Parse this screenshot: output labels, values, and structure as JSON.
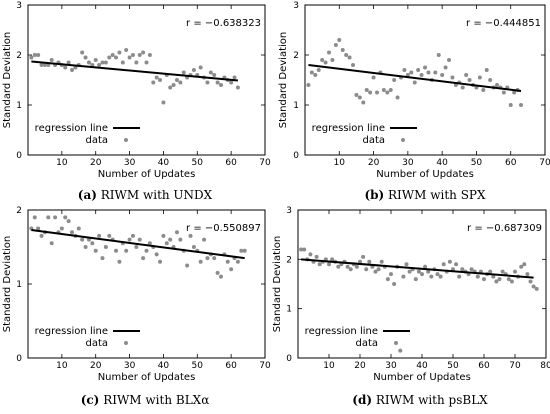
{
  "chart_data": [
    {
      "type": "scatter",
      "panel_id": "a",
      "caption_letter": "(a)",
      "caption_text": "RIWM with UNDX",
      "r_text": "r = −0.638323",
      "xlabel": "Number of Updates",
      "ylabel": "Standard Deviation",
      "xlim": [
        0,
        70
      ],
      "ylim": [
        0,
        3
      ],
      "xticks": [
        10,
        20,
        30,
        40,
        50,
        60,
        70
      ],
      "yticks": [
        0,
        1,
        2,
        3
      ],
      "legend": {
        "placement": "bottom-left",
        "line_label": "regression line",
        "data_label": "data"
      },
      "regression": {
        "x": [
          1,
          62
        ],
        "y": [
          1.87,
          1.49
        ]
      },
      "series": [
        {
          "name": "data",
          "x": [
            1,
            2,
            3,
            4,
            5,
            6,
            7,
            8,
            9,
            10,
            11,
            12,
            13,
            14,
            15,
            16,
            17,
            18,
            19,
            20,
            21,
            22,
            23,
            24,
            25,
            26,
            27,
            28,
            29,
            30,
            31,
            32,
            33,
            34,
            35,
            36,
            37,
            38,
            39,
            40,
            41,
            42,
            43,
            44,
            45,
            46,
            47,
            48,
            49,
            50,
            51,
            52,
            53,
            54,
            55,
            56,
            57,
            58,
            59,
            60,
            61,
            62
          ],
          "y": [
            1.95,
            2.0,
            2.0,
            1.8,
            1.8,
            1.8,
            1.9,
            1.8,
            1.85,
            1.8,
            1.75,
            1.85,
            1.7,
            1.75,
            1.8,
            2.05,
            1.95,
            1.85,
            1.8,
            1.9,
            1.8,
            1.85,
            1.85,
            1.95,
            2.0,
            1.95,
            2.05,
            1.85,
            2.1,
            1.95,
            2.0,
            1.85,
            2.0,
            2.05,
            1.85,
            2.0,
            1.45,
            1.55,
            1.5,
            1.05,
            1.6,
            1.35,
            1.4,
            1.5,
            1.45,
            1.65,
            1.55,
            1.6,
            1.7,
            1.6,
            1.75,
            1.55,
            1.45,
            1.65,
            1.6,
            1.45,
            1.4,
            1.55,
            1.5,
            1.45,
            1.55,
            1.35
          ]
        }
      ]
    },
    {
      "type": "scatter",
      "panel_id": "b",
      "caption_letter": "(b)",
      "caption_text": "RIWM with SPX",
      "r_text": "r = −0.444851",
      "xlabel": "Number of Updates",
      "ylabel": "Standard Deviation",
      "xlim": [
        0,
        70
      ],
      "ylim": [
        0,
        3
      ],
      "xticks": [
        10,
        20,
        30,
        40,
        50,
        60,
        70
      ],
      "yticks": [
        0,
        1,
        2,
        3
      ],
      "legend": {
        "placement": "bottom-left",
        "line_label": "regression line",
        "data_label": "data"
      },
      "regression": {
        "x": [
          1,
          63
        ],
        "y": [
          1.8,
          1.28
        ]
      },
      "series": [
        {
          "name": "data",
          "x": [
            1,
            2,
            3,
            4,
            5,
            6,
            7,
            8,
            9,
            10,
            11,
            12,
            13,
            14,
            15,
            16,
            17,
            18,
            19,
            20,
            21,
            22,
            23,
            24,
            25,
            26,
            27,
            28,
            29,
            30,
            31,
            32,
            33,
            34,
            35,
            36,
            37,
            38,
            39,
            40,
            41,
            42,
            43,
            44,
            45,
            46,
            47,
            48,
            49,
            50,
            51,
            52,
            53,
            54,
            55,
            56,
            57,
            58,
            59,
            60,
            61,
            62,
            63
          ],
          "y": [
            1.4,
            1.65,
            1.6,
            1.7,
            1.9,
            1.85,
            2.05,
            1.9,
            2.2,
            2.3,
            2.1,
            2.0,
            1.95,
            1.8,
            1.2,
            1.15,
            1.05,
            1.3,
            1.25,
            1.55,
            1.25,
            1.65,
            1.3,
            1.25,
            1.3,
            1.5,
            1.15,
            1.55,
            1.7,
            1.6,
            1.65,
            1.45,
            1.7,
            1.6,
            1.75,
            1.65,
            1.5,
            1.65,
            2.0,
            1.6,
            1.75,
            1.9,
            1.55,
            1.4,
            1.45,
            1.35,
            1.6,
            1.5,
            1.4,
            1.35,
            1.55,
            1.3,
            1.7,
            1.5,
            1.35,
            1.4,
            1.35,
            1.25,
            1.35,
            1.0,
            1.25,
            1.3,
            1.0
          ]
        }
      ]
    },
    {
      "type": "scatter",
      "panel_id": "c",
      "caption_letter": "(c)",
      "caption_text": "RIWM with BLXα",
      "r_text": "r = −0.550897",
      "xlabel": "Number of Updates",
      "ylabel": "Standard Deviation",
      "xlim": [
        0,
        70
      ],
      "ylim": [
        0,
        2
      ],
      "xticks": [
        10,
        20,
        30,
        40,
        50,
        60,
        70
      ],
      "yticks": [
        0,
        1,
        2
      ],
      "legend": {
        "placement": "bottom-left",
        "line_label": "regression line",
        "data_label": "data"
      },
      "regression": {
        "x": [
          1,
          64
        ],
        "y": [
          1.73,
          1.35
        ]
      },
      "series": [
        {
          "name": "data",
          "x": [
            1,
            2,
            3,
            4,
            5,
            6,
            7,
            8,
            9,
            10,
            11,
            12,
            13,
            14,
            15,
            16,
            17,
            18,
            19,
            20,
            21,
            22,
            23,
            24,
            25,
            26,
            27,
            28,
            29,
            30,
            31,
            32,
            33,
            34,
            35,
            36,
            37,
            38,
            39,
            40,
            41,
            42,
            43,
            44,
            45,
            46,
            47,
            48,
            49,
            50,
            51,
            52,
            53,
            54,
            55,
            56,
            57,
            58,
            59,
            60,
            61,
            62,
            63,
            64
          ],
          "y": [
            1.75,
            1.9,
            1.75,
            1.65,
            1.7,
            1.9,
            1.55,
            1.9,
            1.7,
            1.75,
            1.9,
            1.85,
            1.7,
            1.65,
            1.75,
            1.6,
            1.5,
            1.6,
            1.55,
            1.45,
            1.65,
            1.35,
            1.5,
            1.65,
            1.6,
            1.45,
            1.3,
            1.55,
            1.45,
            1.6,
            1.65,
            1.5,
            1.6,
            1.35,
            1.45,
            1.55,
            1.5,
            1.4,
            1.3,
            1.65,
            1.55,
            1.6,
            1.5,
            1.7,
            1.6,
            1.45,
            1.25,
            1.65,
            1.5,
            1.45,
            1.3,
            1.6,
            1.35,
            1.4,
            1.35,
            1.15,
            1.1,
            1.4,
            1.3,
            1.2,
            1.35,
            1.3,
            1.45,
            1.45
          ]
        }
      ]
    },
    {
      "type": "scatter",
      "panel_id": "d",
      "caption_letter": "(d)",
      "caption_text": "RIWM with psBLX",
      "r_text": "r = −0.687309",
      "xlabel": "Number of Updates",
      "ylabel": "Standard Deviation",
      "xlim": [
        0,
        80
      ],
      "ylim": [
        0,
        3
      ],
      "xticks": [
        10,
        20,
        30,
        40,
        50,
        60,
        70,
        80
      ],
      "yticks": [
        0,
        1,
        2,
        3
      ],
      "legend": {
        "placement": "bottom-left",
        "line_label": "regression line",
        "data_label": "data"
      },
      "regression": {
        "x": [
          1,
          76
        ],
        "y": [
          2.0,
          1.63
        ]
      },
      "series": [
        {
          "name": "data",
          "x": [
            1,
            2,
            3,
            4,
            5,
            6,
            7,
            8,
            9,
            10,
            11,
            12,
            13,
            14,
            15,
            16,
            17,
            18,
            19,
            20,
            21,
            22,
            23,
            24,
            25,
            26,
            27,
            28,
            29,
            30,
            31,
            32,
            33,
            34,
            35,
            36,
            37,
            38,
            39,
            40,
            41,
            42,
            43,
            44,
            45,
            46,
            47,
            48,
            49,
            50,
            51,
            52,
            53,
            54,
            55,
            56,
            57,
            58,
            59,
            60,
            61,
            62,
            63,
            64,
            65,
            66,
            67,
            68,
            69,
            70,
            71,
            72,
            73,
            74,
            75,
            76,
            77
          ],
          "y": [
            2.2,
            2.2,
            2.0,
            2.1,
            1.95,
            2.05,
            1.9,
            1.95,
            2.0,
            1.9,
            2.0,
            1.95,
            1.85,
            1.9,
            1.95,
            1.85,
            1.8,
            1.9,
            1.85,
            1.95,
            2.05,
            1.8,
            1.95,
            1.85,
            1.75,
            1.8,
            1.95,
            1.85,
            1.6,
            1.7,
            1.5,
            1.85,
            0.15,
            1.65,
            1.9,
            1.75,
            1.8,
            1.6,
            1.75,
            1.7,
            1.85,
            1.75,
            1.65,
            1.8,
            1.7,
            1.65,
            1.9,
            1.75,
            1.95,
            1.8,
            1.9,
            1.65,
            1.8,
            1.75,
            1.7,
            1.8,
            1.75,
            1.65,
            1.75,
            1.6,
            1.7,
            1.75,
            1.65,
            1.55,
            1.6,
            1.75,
            1.7,
            1.6,
            1.55,
            1.75,
            1.65,
            1.85,
            1.9,
            1.7,
            1.55,
            1.45,
            1.4
          ]
        }
      ]
    }
  ]
}
